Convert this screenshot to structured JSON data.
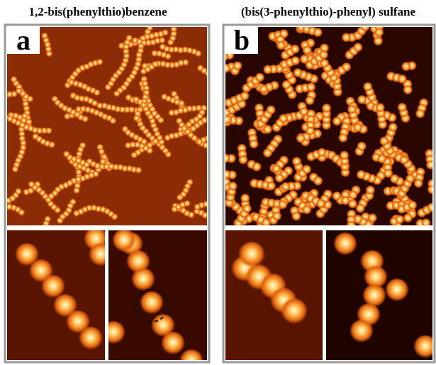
{
  "panels": [
    {
      "label": "a",
      "title": "1,2-bis(phenylthio)benzene"
    },
    {
      "label": "b",
      "title": "(bis(3-phenylthio)-phenyl) sulfane"
    }
  ]
}
